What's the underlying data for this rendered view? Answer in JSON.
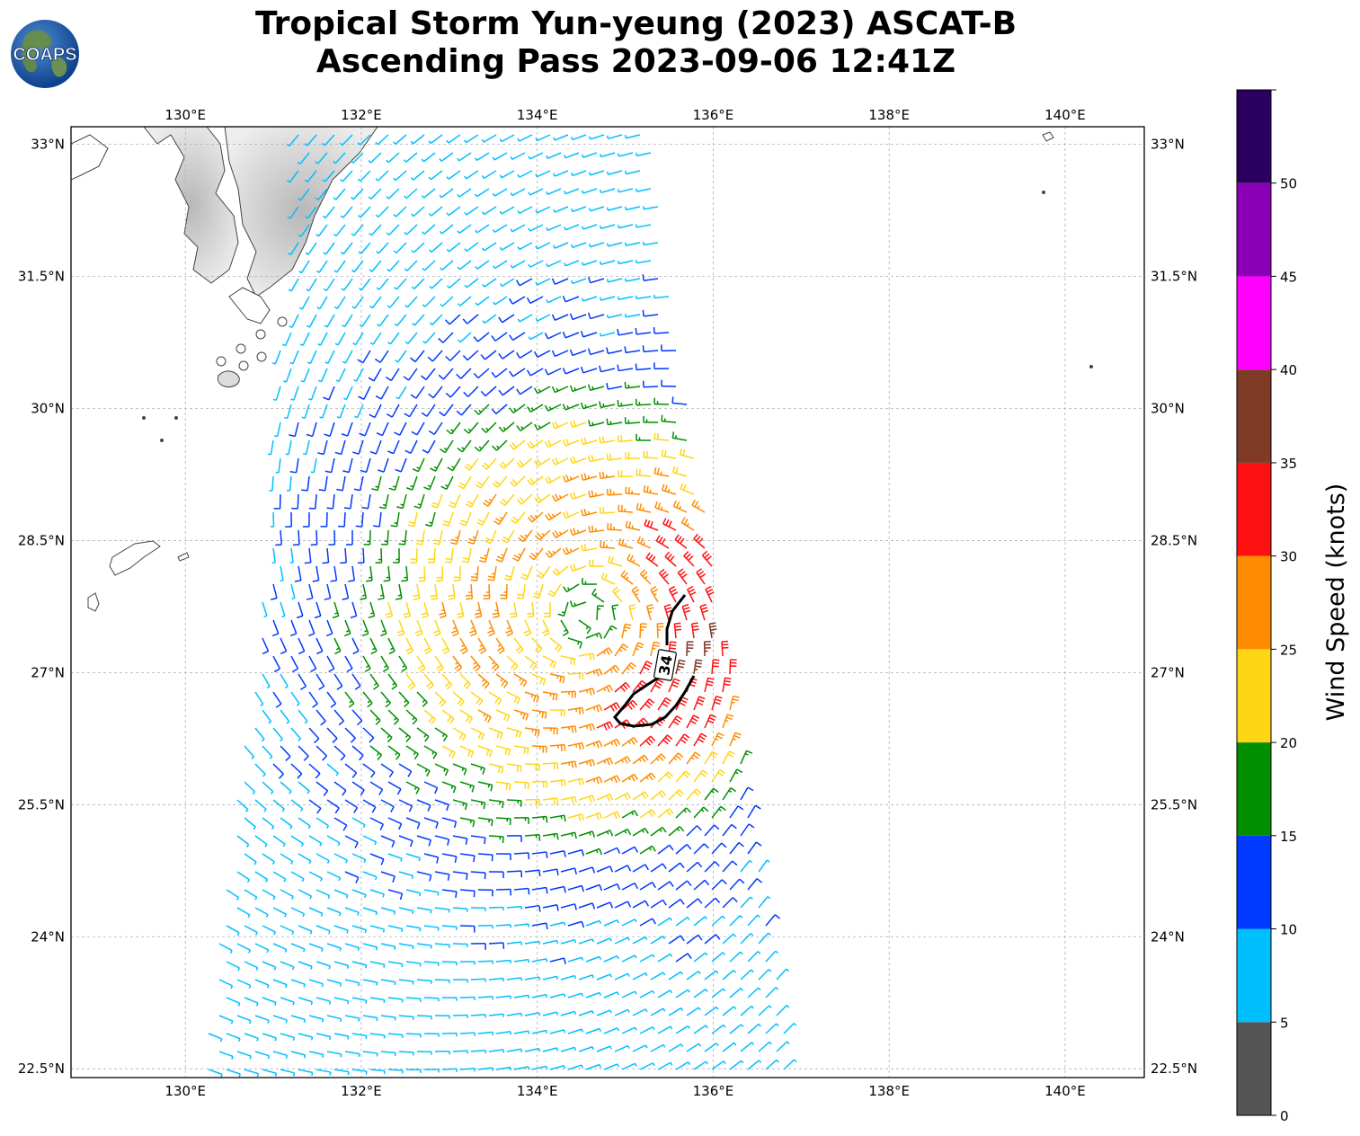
{
  "title_line1": "Tropical Storm Yun-yeung (2023) ASCAT-B",
  "title_line2": "Ascending Pass 2023-09-06 12:41Z",
  "logo_text": "COAPS",
  "map": {
    "lon_range": [
      128.7,
      140.9
    ],
    "lat_range": [
      22.4,
      33.2
    ],
    "lon_ticks": [
      {
        "value": 130,
        "label": "130°E"
      },
      {
        "value": 132,
        "label": "132°E"
      },
      {
        "value": 134,
        "label": "134°E"
      },
      {
        "value": 136,
        "label": "136°E"
      },
      {
        "value": 138,
        "label": "138°E"
      },
      {
        "value": 140,
        "label": "140°E"
      }
    ],
    "lat_ticks": [
      {
        "value": 33.0,
        "label": "33°N"
      },
      {
        "value": 31.5,
        "label": "31.5°N"
      },
      {
        "value": 30.0,
        "label": "30°N"
      },
      {
        "value": 28.5,
        "label": "28.5°N"
      },
      {
        "value": 27.0,
        "label": "27°N"
      },
      {
        "value": 25.5,
        "label": "25.5°N"
      },
      {
        "value": 24.0,
        "label": "24°N"
      },
      {
        "value": 22.5,
        "label": "22.5°N"
      }
    ],
    "grid": true,
    "storm_center": {
      "lon": 134.55,
      "lat": 27.65
    },
    "contour_label": "34"
  },
  "colorbar": {
    "label": "Wind Speed (knots)",
    "min": 0,
    "max": 55,
    "bins": [
      {
        "from": 0,
        "to": 5,
        "color": "#555555"
      },
      {
        "from": 5,
        "to": 10,
        "color": "#00bfff"
      },
      {
        "from": 10,
        "to": 15,
        "color": "#0039ff"
      },
      {
        "from": 15,
        "to": 20,
        "color": "#008f00"
      },
      {
        "from": 20,
        "to": 25,
        "color": "#ffd616"
      },
      {
        "from": 25,
        "to": 30,
        "color": "#ff8c00"
      },
      {
        "from": 30,
        "to": 35,
        "color": "#ff1010"
      },
      {
        "from": 35,
        "to": 40,
        "color": "#7f3b26"
      },
      {
        "from": 40,
        "to": 45,
        "color": "#ff00ff"
      },
      {
        "from": 45,
        "to": 50,
        "color": "#8b00b7"
      },
      {
        "from": 50,
        "to": 55,
        "color": "#2b0060"
      }
    ],
    "tick_labels": [
      "0",
      "5",
      "10",
      "15",
      "20",
      "25",
      "30",
      "35",
      "40",
      "45",
      "50"
    ]
  }
}
